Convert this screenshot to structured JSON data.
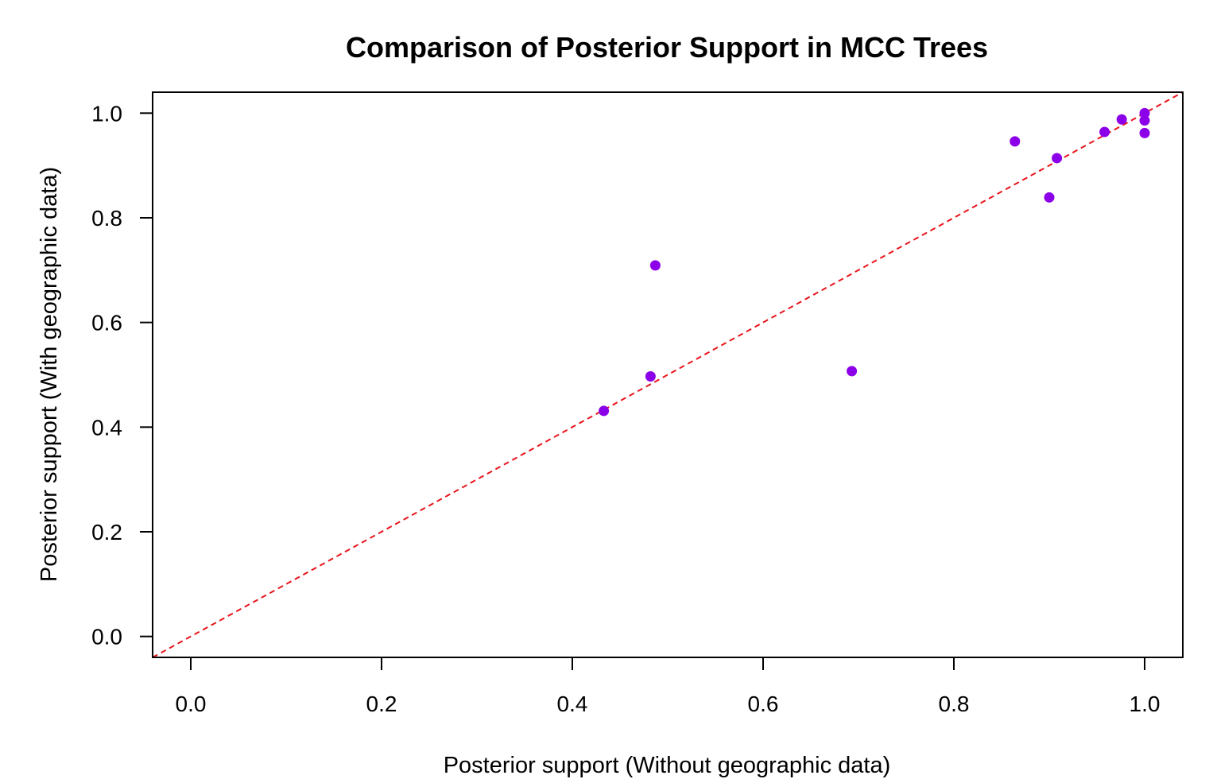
{
  "chart_data": {
    "type": "scatter",
    "title": "Comparison of Posterior Support in MCC Trees",
    "xlabel": "Posterior support (Without geographic data)",
    "ylabel": "Posterior support (With geographic data)",
    "xlim": [
      -0.04,
      1.04
    ],
    "ylim": [
      -0.04,
      1.04
    ],
    "x_ticks": [
      "0.0",
      "0.2",
      "0.4",
      "0.6",
      "0.8",
      "1.0"
    ],
    "y_ticks": [
      "0.0",
      "0.2",
      "0.4",
      "0.6",
      "0.8",
      "1.0"
    ],
    "grid": false,
    "point_color": "#8B00E8",
    "reference_line": {
      "type": "y=x",
      "color": "#E8141B",
      "style": "dashed"
    },
    "series": [
      {
        "x": [
          0.433,
          0.482,
          0.487,
          0.693,
          0.864,
          0.9,
          0.908,
          0.958,
          0.976,
          1.0,
          1.0,
          1.0
        ],
        "y": [
          0.431,
          0.497,
          0.709,
          0.507,
          0.946,
          0.839,
          0.914,
          0.964,
          0.988,
          1.0,
          0.986,
          0.962
        ]
      }
    ]
  }
}
